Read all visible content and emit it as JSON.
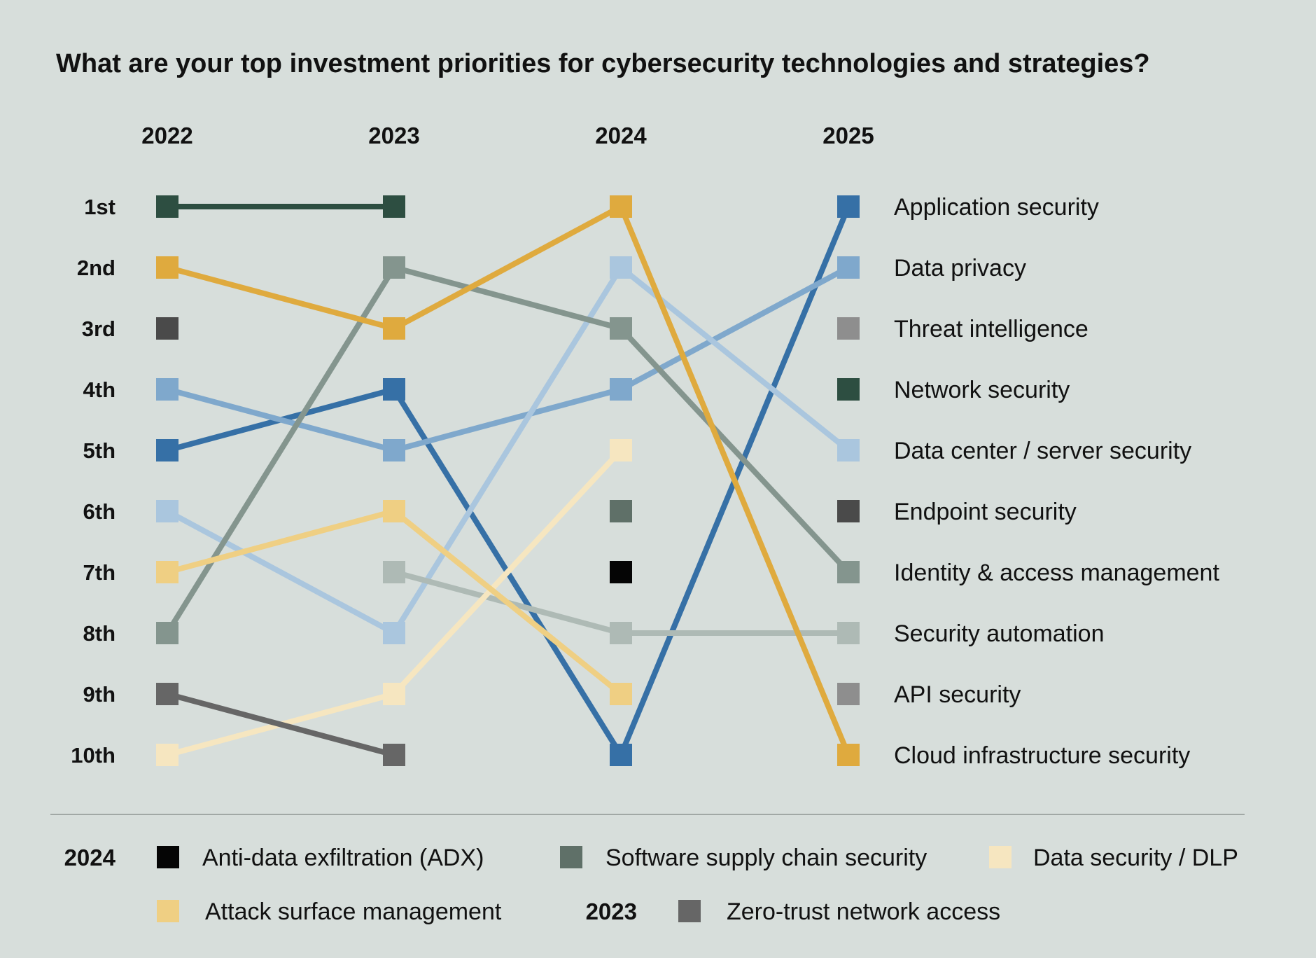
{
  "chart_data": {
    "type": "line",
    "subtype": "bump-ranking",
    "title": "What are your top investment priorities for cybersecurity technologies and strategies?",
    "years": [
      "2022",
      "2023",
      "2024",
      "2025"
    ],
    "ranks": [
      "1st",
      "2nd",
      "3rd",
      "4th",
      "5th",
      "6th",
      "7th",
      "8th",
      "9th",
      "10th"
    ],
    "ylim": [
      1,
      10
    ],
    "series": [
      {
        "name": "Application security",
        "color": "#3670a6",
        "values": [
          5,
          4,
          10,
          1
        ],
        "show_label": true
      },
      {
        "name": "Data privacy",
        "color": "#7fa8cc",
        "values": [
          4,
          5,
          4,
          2
        ],
        "show_label": true
      },
      {
        "name": "Threat intelligence",
        "color": "#8e8e8e",
        "values": [
          null,
          null,
          null,
          3
        ],
        "show_label": true
      },
      {
        "name": "Network security",
        "color": "#2d4e41",
        "values": [
          1,
          1,
          null,
          4
        ],
        "show_label": true
      },
      {
        "name": "Data center / server security",
        "color": "#aac6de",
        "values": [
          6,
          8,
          2,
          5
        ],
        "show_label": true
      },
      {
        "name": "Endpoint security",
        "color": "#4a4a4a",
        "values": [
          3,
          null,
          null,
          6
        ],
        "show_label": true
      },
      {
        "name": "Identity & access management",
        "color": "#84958e",
        "values": [
          8,
          2,
          3,
          7
        ],
        "show_label": true
      },
      {
        "name": "Security automation",
        "color": "#aebab5",
        "values": [
          null,
          7,
          8,
          8
        ],
        "show_label": true
      },
      {
        "name": "API security",
        "color": "#8e8e8e",
        "values": [
          null,
          null,
          null,
          9
        ],
        "show_label": true
      },
      {
        "name": "Cloud infrastructure security",
        "color": "#dfaa3e",
        "values": [
          2,
          3,
          1,
          10
        ],
        "show_label": true
      },
      {
        "name": "Anti-data exfiltration (ADX)",
        "color": "#050505",
        "values": [
          null,
          null,
          7,
          null
        ],
        "show_label": false
      },
      {
        "name": "Software supply chain security",
        "color": "#5f7068",
        "values": [
          null,
          null,
          6,
          null
        ],
        "show_label": false
      },
      {
        "name": "Data security / DLP",
        "color": "#f6e6c0",
        "values": [
          10,
          9,
          5,
          null
        ],
        "show_label": false
      },
      {
        "name": "Attack surface management",
        "color": "#efcf83",
        "values": [
          7,
          6,
          9,
          null
        ],
        "show_label": false
      },
      {
        "name": "Zero-trust network access",
        "color": "#666666",
        "values": [
          9,
          10,
          null,
          null
        ],
        "show_label": false
      }
    ],
    "legend_notes": [
      {
        "year": "2024",
        "items": [
          "Anti-data exfiltration (ADX)",
          "Software supply chain security",
          "Data security / DLP",
          "Attack surface management"
        ]
      },
      {
        "year": "2023",
        "items": [
          "Zero-trust network access"
        ]
      }
    ]
  }
}
